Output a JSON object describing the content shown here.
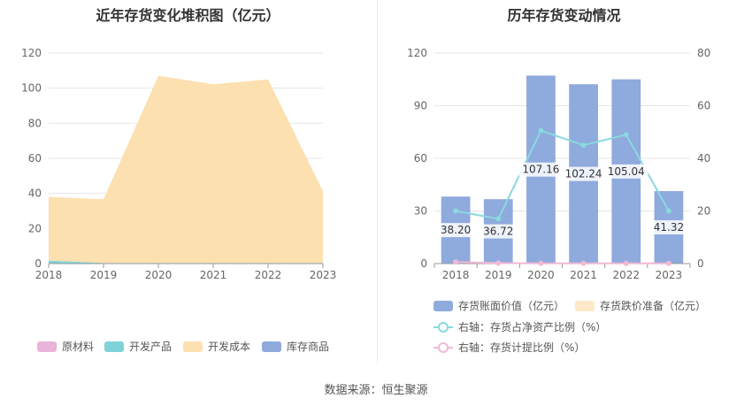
{
  "page": {
    "source": "数据来源：恒生聚源"
  },
  "chart_data": [
    {
      "type": "area",
      "stacked": true,
      "title": "近年存货变化堆积图（亿元）",
      "categories": [
        "2018",
        "2019",
        "2020",
        "2021",
        "2022",
        "2023"
      ],
      "ylim": [
        0,
        120
      ],
      "yticks": [
        "0",
        "20",
        "40",
        "60",
        "80",
        "100",
        "120"
      ],
      "grid": true,
      "legend_position": "bottom",
      "series": [
        {
          "name": "原材料",
          "color": "#e8b4d8",
          "values": [
            0.2,
            0.2,
            0.2,
            0.2,
            0.2,
            0.2
          ]
        },
        {
          "name": "开发产品",
          "color": "#7fd3d8",
          "values": [
            1.5,
            0.2,
            0.2,
            0.2,
            0.2,
            0.2
          ]
        },
        {
          "name": "开发成本",
          "color": "#fde0b0",
          "values": [
            36.3,
            36.3,
            106.7,
            101.8,
            104.6,
            40.9
          ]
        },
        {
          "name": "库存商品",
          "color": "#8faadc",
          "values": [
            0,
            0,
            0,
            0,
            0,
            0
          ]
        }
      ]
    },
    {
      "type": "bar",
      "title": "历年存货变动情况",
      "categories": [
        "2018",
        "2019",
        "2020",
        "2021",
        "2022",
        "2023"
      ],
      "ylim": [
        0,
        120
      ],
      "yticks": [
        "0",
        "30",
        "60",
        "90",
        "120"
      ],
      "y2lim": [
        0,
        80
      ],
      "y2ticks": [
        "0",
        "20",
        "40",
        "60",
        "80"
      ],
      "grid": true,
      "legend_position": "bottom",
      "series": [
        {
          "name": "存货账面价值（亿元）",
          "kind": "bar",
          "axis": "left",
          "color": "#8faadc",
          "values": [
            38.2,
            36.72,
            107.16,
            102.24,
            105.04,
            41.32
          ],
          "labels": [
            "38.20",
            "36.72",
            "107.16",
            "102.24",
            "105.04",
            "41.32"
          ]
        },
        {
          "name": "存货跌价准备（亿元）",
          "kind": "bar",
          "axis": "left",
          "color": "#fde9c8",
          "values": [
            0,
            0,
            0,
            0,
            0,
            0
          ]
        },
        {
          "name": "右轴：存货占净资产比例（%）",
          "kind": "line",
          "axis": "right",
          "color": "#8ad8e0",
          "values": [
            20,
            17,
            50.5,
            45,
            49,
            20
          ]
        },
        {
          "name": "右轴：存货计提比例（%）",
          "kind": "line",
          "axis": "right",
          "color": "#f0b8d8",
          "values": [
            0.6,
            0.2,
            0.1,
            0.1,
            0.1,
            0.1
          ]
        }
      ]
    }
  ]
}
